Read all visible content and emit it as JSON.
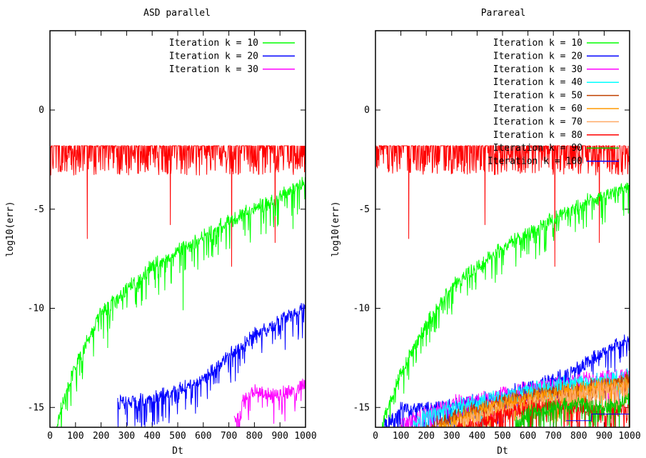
{
  "chart_data": [
    {
      "type": "line",
      "title": "ASD parallel",
      "xlabel": "Dt",
      "ylabel": "log10(err)",
      "xlim": [
        0,
        1000
      ],
      "ylim": [
        -16,
        4
      ],
      "xticks": [
        "0",
        "100",
        "200",
        "300",
        "400",
        "500",
        "600",
        "700",
        "800",
        "900",
        "1000"
      ],
      "yticks": [
        "0",
        "-5",
        "-10",
        "-15"
      ],
      "ytick_values": [
        0,
        -5,
        -10,
        -15
      ],
      "legend_position": "top-right",
      "grid": false,
      "series": [
        {
          "name": "",
          "color": "#ff0000",
          "noise": "band",
          "x": [
            0,
            1000
          ],
          "y": [
            -1.8,
            -1.8
          ],
          "dip_to": -3.3,
          "spikes": [
            [
              145,
              -6.5
            ],
            [
              470,
              -5.8
            ],
            [
              710,
              -7.9
            ],
            [
              880,
              -6.7
            ]
          ]
        },
        {
          "name": "Iteration k = 10",
          "color": "#00ff00",
          "noise": "dips",
          "x": [
            25,
            40,
            100,
            200,
            300,
            400,
            500,
            600,
            700,
            800,
            900,
            1000
          ],
          "y": [
            -16,
            -15,
            -12.5,
            -10,
            -8.7,
            -7.6,
            -6.8,
            -6.1,
            -5.3,
            -4.7,
            -4.1,
            -3.3
          ],
          "spikes": [
            [
              225,
              -12
            ],
            [
              520,
              -10.1
            ],
            [
              950,
              -6
            ]
          ]
        },
        {
          "name": "Iteration k = 20",
          "color": "#0000ff",
          "noise": "dips",
          "x": [
            265,
            300,
            400,
            500,
            600,
            700,
            800,
            900,
            1000
          ],
          "y": [
            -14.5,
            -14.4,
            -14.2,
            -13.9,
            -13.2,
            -12.1,
            -11.1,
            -10.4,
            -9.6
          ]
        },
        {
          "name": "Iteration k = 30",
          "color": "#ff00ff",
          "noise": "dips",
          "x": [
            720,
            745,
            755,
            800,
            850,
            900,
            950,
            1000
          ],
          "y": [
            -15.3,
            -15.3,
            -14.3,
            -13.8,
            -14.1,
            -14,
            -13.9,
            -13.5
          ]
        }
      ]
    },
    {
      "type": "line",
      "title": "Parareal",
      "xlabel": "Dt",
      "ylabel": "log10(err)",
      "xlim": [
        0,
        1000
      ],
      "ylim": [
        -16,
        4
      ],
      "xticks": [
        "0",
        "100",
        "200",
        "300",
        "400",
        "500",
        "600",
        "700",
        "800",
        "900",
        "1000"
      ],
      "yticks": [
        "0",
        "-5",
        "-10",
        "-15"
      ],
      "ytick_values": [
        0,
        -5,
        -10,
        -15
      ],
      "legend_position": "top-right",
      "grid": false,
      "series": [
        {
          "name": "",
          "color": "#ff0000",
          "noise": "band",
          "x": [
            0,
            1000
          ],
          "y": [
            -1.8,
            -1.8
          ],
          "dip_to": -3.3,
          "spikes": [
            [
              130,
              -6.5
            ],
            [
              430,
              -5.8
            ],
            [
              705,
              -7.9
            ],
            [
              880,
              -6.7
            ]
          ]
        },
        {
          "name": "Iteration k = 10",
          "color": "#00ff00",
          "noise": "dips",
          "x": [
            20,
            40,
            100,
            200,
            300,
            400,
            500,
            600,
            700,
            800,
            900,
            1000
          ],
          "y": [
            -16,
            -15,
            -13,
            -10.5,
            -8.6,
            -7.6,
            -6.6,
            -5.9,
            -5.2,
            -4.5,
            -4,
            -3.5
          ]
        },
        {
          "name": "Iteration k = 20",
          "color": "#0000ff",
          "noise": "dips",
          "x": [
            30,
            100,
            200,
            300,
            400,
            500,
            600,
            700,
            800,
            900,
            1000
          ],
          "y": [
            -15.6,
            -14.8,
            -14.7,
            -14.6,
            -14.4,
            -14.1,
            -13.7,
            -13.3,
            -12.7,
            -11.9,
            -11.2
          ]
        },
        {
          "name": "Iteration k = 30",
          "color": "#ff00ff",
          "noise": "dips",
          "x": [
            100,
            200,
            300,
            400,
            500,
            600,
            700,
            800,
            900,
            1000
          ],
          "y": [
            -15.5,
            -15,
            -14.5,
            -14.3,
            -14,
            -13.7,
            -13.5,
            -13.3,
            -13.2,
            -13
          ]
        },
        {
          "name": "Iteration k = 40",
          "color": "#00ffff",
          "noise": "dips",
          "x": [
            150,
            200,
            300,
            400,
            500,
            600,
            700,
            800,
            900,
            1000
          ],
          "y": [
            -15.5,
            -15.1,
            -14.7,
            -14.4,
            -14.1,
            -13.8,
            -13.6,
            -13.4,
            -13.3,
            -13.1
          ]
        },
        {
          "name": "Iteration k = 50",
          "color": "#c04000",
          "noise": "dips",
          "x": [
            200,
            300,
            400,
            500,
            600,
            700,
            800,
            900,
            1000
          ],
          "y": [
            -15.8,
            -15.2,
            -14.8,
            -14.4,
            -14.1,
            -13.9,
            -13.7,
            -13.5,
            -13.3
          ]
        },
        {
          "name": "Iteration k = 60",
          "color": "#ff9900",
          "noise": "dips",
          "x": [
            250,
            300,
            400,
            500,
            600,
            700,
            800,
            900,
            1000
          ],
          "y": [
            -15.8,
            -15.4,
            -14.9,
            -14.5,
            -14.2,
            -14,
            -13.8,
            -13.6,
            -13.4
          ]
        },
        {
          "name": "Iteration k = 70",
          "color": "#ffaa66",
          "noise": "dips",
          "x": [
            300,
            400,
            500,
            600,
            700,
            800,
            900,
            1000
          ],
          "y": [
            -15.7,
            -15.2,
            -14.8,
            -14.5,
            -14.2,
            -14,
            -13.8,
            -13.6
          ]
        },
        {
          "name": "Iteration k = 80",
          "color": "#ff0000",
          "noise": "dips",
          "x": [
            320,
            400,
            500,
            600,
            700,
            800,
            900,
            1000
          ],
          "y": [
            -15.8,
            -15.5,
            -15,
            -14.7,
            -14.6,
            -14.8,
            -14.9,
            -14.7
          ]
        },
        {
          "name": "Iteration k = 90",
          "color": "#00cc00",
          "noise": "dips",
          "x": [
            550,
            600,
            700,
            800,
            900,
            1000
          ],
          "y": [
            -15.5,
            -15,
            -14.6,
            -14.5,
            -14.7,
            -14.3
          ]
        },
        {
          "name": "Iteration k = 100",
          "color": "#0000ff",
          "noise": "steps",
          "x": [
            750,
            800,
            850,
            900,
            950,
            1000
          ],
          "y": [
            -15.8,
            -15.8,
            -15.5,
            -15.3,
            -15.5,
            -15.4
          ]
        }
      ]
    }
  ]
}
